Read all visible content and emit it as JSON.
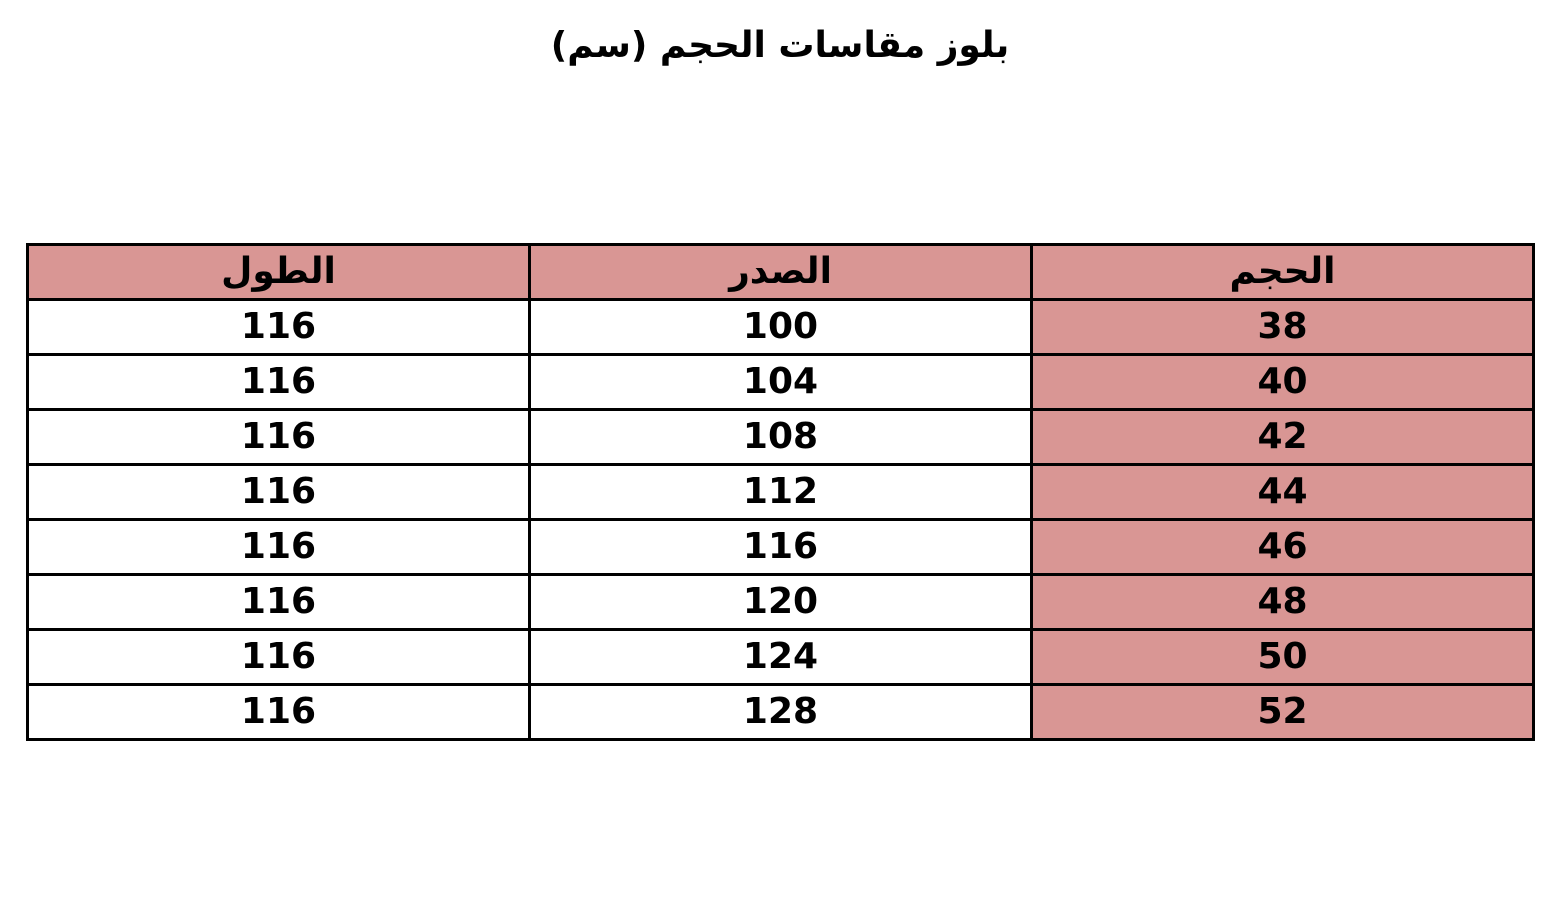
{
  "title": "بلوز مقاسات الحجم (سم)",
  "colors": {
    "header_fill": "#d99694",
    "size_column_fill": "#d99694",
    "border": "#000000"
  },
  "table": {
    "headers": [
      "الحجم",
      "الصدر",
      "الطول"
    ],
    "rows": [
      [
        "38",
        "100",
        "116"
      ],
      [
        "40",
        "104",
        "116"
      ],
      [
        "42",
        "108",
        "116"
      ],
      [
        "44",
        "112",
        "116"
      ],
      [
        "46",
        "116",
        "116"
      ],
      [
        "48",
        "120",
        "116"
      ],
      [
        "50",
        "124",
        "116"
      ],
      [
        "52",
        "128",
        "116"
      ]
    ]
  }
}
